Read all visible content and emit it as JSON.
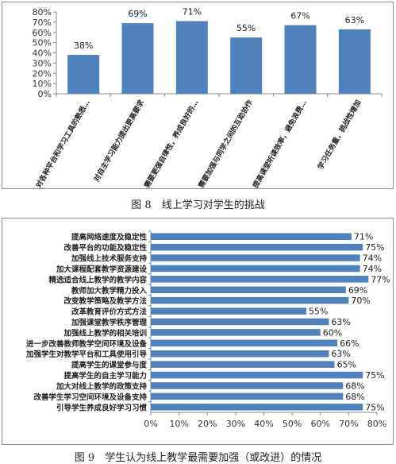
{
  "charts": [
    {
      "caption": "图 8　线上学习对学生的挑战",
      "chart_data": {
        "type": "bar",
        "categories": [
          "对各种平台和学习工具的熟悉…",
          "对自主学习能力提出更高要求",
          "需要更强自律性，养成良好的…",
          "需要加强与同学之间的互助协作",
          "提高课堂听课效率，避免浪费…",
          "学习任务重，挑战性增加"
        ],
        "values": [
          38,
          69,
          71,
          55,
          67,
          63
        ],
        "value_labels": [
          "38%",
          "69%",
          "71%",
          "55%",
          "67%",
          "63%"
        ],
        "y_ticks": [
          "0%",
          "10%",
          "20%",
          "30%",
          "40%",
          "50%",
          "60%",
          "70%",
          "80%"
        ],
        "ylim": [
          0,
          80
        ],
        "grid": false,
        "bar_color": "#4f81bd"
      }
    },
    {
      "caption": "图 9　学生认为线上教学最需要加强（或改进）的情况",
      "chart_data": {
        "type": "bar",
        "orientation": "horizontal",
        "categories": [
          "提高网络速度及稳定性",
          "改善平台的功能及稳定性",
          "加强线上技术服务支持",
          "加大课程配套教学资源建设",
          "精选适合线上教学的教学内容",
          "教师加大教学精力投入",
          "改变教学策略及教学方法",
          "改革教育评价方式方法",
          "加强课堂教学秩序管理",
          "加强线上教学的相关培训",
          "进一步改善教师教学空间环境及设备",
          "加强学生对教学平台和工具使用引导",
          "提高学生的课堂参与度",
          "提高学生的自主学习能力",
          "加大对线上教学的政策支持",
          "改善学生学习空间环境及设备支持",
          "引导学生养成良好学习习惯"
        ],
        "values": [
          71,
          75,
          74,
          74,
          77,
          69,
          70,
          55,
          63,
          60,
          66,
          63,
          65,
          75,
          68,
          68,
          75
        ],
        "value_labels": [
          "71%",
          "75%",
          "74%",
          "74%",
          "77%",
          "69%",
          "70%",
          "55%",
          "63%",
          "60%",
          "66%",
          "63%",
          "65%",
          "75%",
          "68%",
          "68%",
          "75%"
        ],
        "x_ticks": [
          "0%",
          "10%",
          "20%",
          "30%",
          "40%",
          "50%",
          "60%",
          "70%",
          "80%"
        ],
        "xlim": [
          0,
          80
        ],
        "grid": false,
        "bar_color": "#4f81bd"
      }
    }
  ]
}
